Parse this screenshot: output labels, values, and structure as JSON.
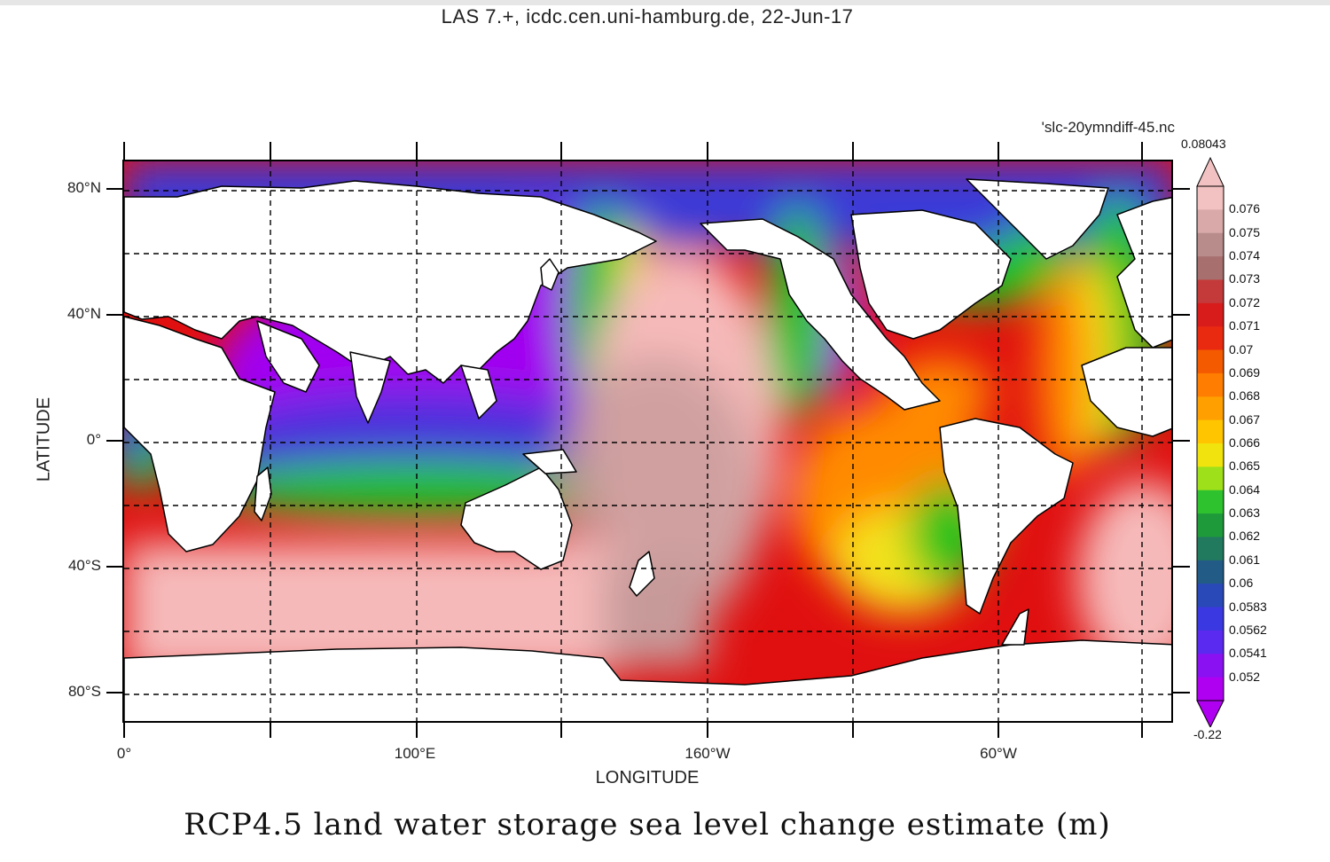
{
  "header": {
    "text": "LAS 7.+, icdc.cen.uni-hamburg.de, 22-Jun-17"
  },
  "file_label": "'slc-20ymndiff-45.nc",
  "caption": "RCP4.5 land water storage sea level change estimate (m)",
  "map": {
    "x_axis_title": "LONGITUDE",
    "y_axis_title": "LATITUDE",
    "lon_ticks": [
      "0°",
      "100°E",
      "160°W",
      "60°W"
    ],
    "lat_ticks": [
      "80°N",
      "40°N",
      "0°",
      "40°S",
      "80°S"
    ],
    "grid": "dashed",
    "colors": {
      "land": "#ffffff",
      "coast": "#000000",
      "high": "#f6b9b9",
      "red": "#e01010",
      "orange": "#ff8a00",
      "yellow": "#f4e21a",
      "green": "#1fc21f",
      "blue": "#3a3ad8",
      "purple": "#a100f0"
    }
  },
  "colorbar": {
    "max_label": "0.08043",
    "min_label": "-0.22",
    "labels": [
      "0.076",
      "0.075",
      "0.074",
      "0.073",
      "0.072",
      "0.071",
      "0.07",
      "0.069",
      "0.068",
      "0.067",
      "0.066",
      "0.065",
      "0.064",
      "0.063",
      "0.062",
      "0.061",
      "0.06",
      "0.0583",
      "0.0562",
      "0.0541",
      "0.052"
    ],
    "colors": [
      "#f2c1c1",
      "#d9a9a9",
      "#b98c8c",
      "#a86f6f",
      "#c43a3a",
      "#d81c1c",
      "#ea2a10",
      "#f45a00",
      "#ff7d00",
      "#ffa000",
      "#ffc600",
      "#f1e40e",
      "#9ee01a",
      "#2ec22e",
      "#1f9a3a",
      "#227a5e",
      "#235b87",
      "#2a49b8",
      "#3a38e0",
      "#5b2af0",
      "#8a12f2",
      "#b000f2"
    ]
  }
}
